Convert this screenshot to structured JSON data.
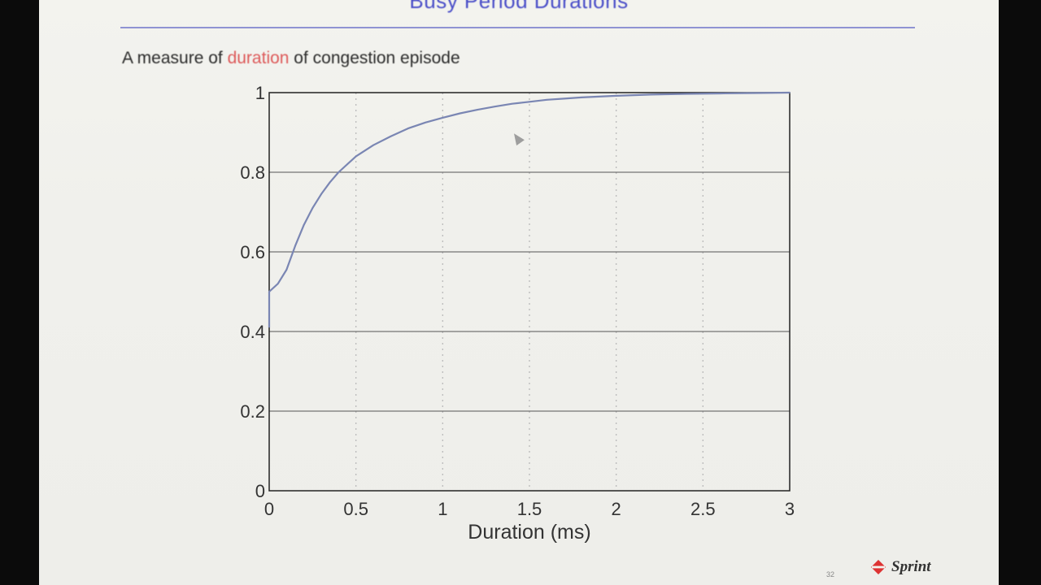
{
  "slide": {
    "title": "Busy Period Durations",
    "subtitle_pre": "A measure of ",
    "subtitle_highlight": "duration",
    "subtitle_post": " of congestion episode",
    "slide_number": "32",
    "brand": "Sprint",
    "colors": {
      "title": "#4b4fc8",
      "highlight": "#dd5a5a",
      "curve": "#7a86b3"
    }
  },
  "chart_data": {
    "type": "line",
    "title": "",
    "xlabel": "Duration (ms)",
    "ylabel": "",
    "xlim": [
      0,
      3
    ],
    "ylim": [
      0,
      1
    ],
    "xticks": [
      0,
      0.5,
      1,
      1.5,
      2,
      2.5,
      3
    ],
    "xtick_labels": [
      "0",
      "0.5",
      "1",
      "1.5",
      "2",
      "2.5",
      "3"
    ],
    "yticks": [
      0,
      0.2,
      0.4,
      0.6,
      0.8,
      1
    ],
    "ytick_labels": [
      "0",
      "0.2",
      "0.4",
      "0.6",
      "0.8",
      "1"
    ],
    "grid": "vertical dotted, horizontal solid",
    "series": [
      {
        "x": [
          0,
          0.05,
          0.1,
          0.15,
          0.2,
          0.25,
          0.3,
          0.35,
          0.4,
          0.45,
          0.5,
          0.6,
          0.7,
          0.8,
          0.9,
          1.0,
          1.1,
          1.2,
          1.3,
          1.4,
          1.5,
          1.6,
          1.7,
          1.8,
          1.9,
          2.0,
          2.2,
          2.4,
          2.6,
          2.8,
          3.0
        ],
        "y": [
          0.5,
          0.52,
          0.555,
          0.615,
          0.668,
          0.71,
          0.745,
          0.775,
          0.8,
          0.82,
          0.84,
          0.868,
          0.89,
          0.91,
          0.925,
          0.937,
          0.948,
          0.957,
          0.965,
          0.972,
          0.977,
          0.982,
          0.985,
          0.988,
          0.99,
          0.992,
          0.995,
          0.997,
          0.998,
          0.999,
          1.0
        ]
      }
    ]
  }
}
